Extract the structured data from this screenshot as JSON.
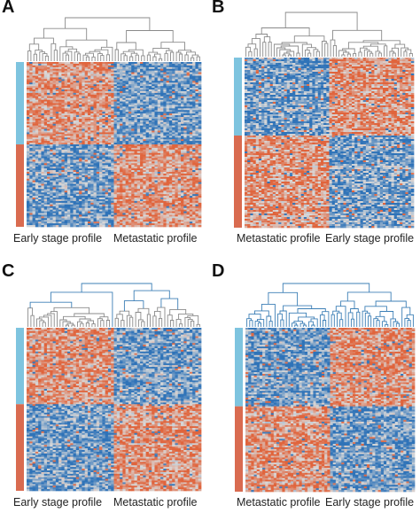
{
  "figure": {
    "panels": [
      {
        "letter": "A",
        "left_label": "Early stage profile",
        "right_label": "Metastatic profile"
      },
      {
        "letter": "B",
        "left_label": "Metastatic profile",
        "right_label": "Early stage profile"
      },
      {
        "letter": "C",
        "left_label": "Early stage profile",
        "right_label": "Metastatic profile"
      },
      {
        "letter": "D",
        "left_label": "Metastatic profile",
        "right_label": "Early stage profile"
      }
    ]
  },
  "colors": {
    "up": "#e0643c",
    "down": "#2f73b8",
    "neutral": "#d9d9d9",
    "row_group_top": "#7ec4df",
    "row_group_bottom": "#d96b50",
    "dendro_gray": "#8a8a8a",
    "dendro_blue": "#3c7fb6"
  },
  "chart_data": [
    {
      "type": "heatmap",
      "panel": "A",
      "row_groups": [
        "top",
        "bottom"
      ],
      "column_groups": [
        "Early stage profile",
        "Metastatic profile"
      ],
      "pattern": {
        "top": [
          "up",
          "down"
        ],
        "bottom": [
          "down",
          "up"
        ]
      },
      "dendrogram_color": "gray"
    },
    {
      "type": "heatmap",
      "panel": "B",
      "row_groups": [
        "top",
        "bottom"
      ],
      "column_groups": [
        "Metastatic profile",
        "Early stage profile"
      ],
      "pattern": {
        "top": [
          "down",
          "up"
        ],
        "bottom": [
          "up",
          "down"
        ]
      },
      "dendrogram_color": "gray"
    },
    {
      "type": "heatmap",
      "panel": "C",
      "row_groups": [
        "top",
        "bottom"
      ],
      "column_groups": [
        "Early stage profile",
        "Metastatic profile"
      ],
      "pattern": {
        "top": [
          "up",
          "down"
        ],
        "bottom": [
          "down",
          "up"
        ]
      },
      "dendrogram_color": "gray-blue"
    },
    {
      "type": "heatmap",
      "panel": "D",
      "row_groups": [
        "top",
        "bottom"
      ],
      "column_groups": [
        "Metastatic profile",
        "Early stage profile"
      ],
      "pattern": {
        "top": [
          "down",
          "up"
        ],
        "bottom": [
          "up",
          "down"
        ]
      },
      "dendrogram_color": "blue"
    }
  ]
}
